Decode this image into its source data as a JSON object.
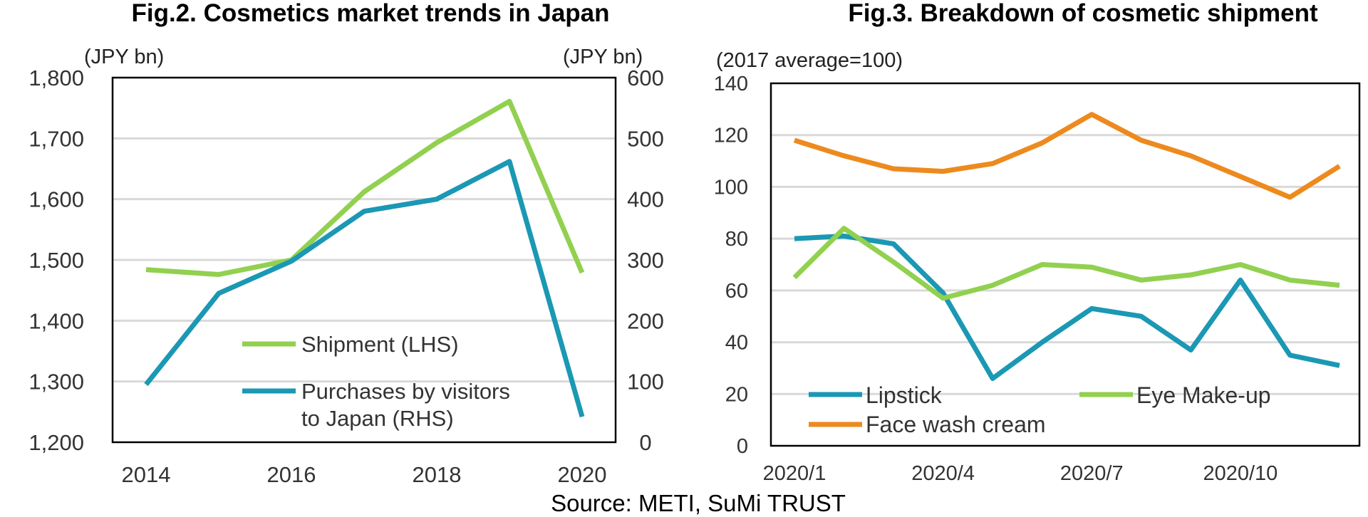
{
  "chart_data": [
    {
      "type": "line",
      "title": "Fig.2. Cosmetics market trends in Japan",
      "ylabel_left": "(JPY bn)",
      "ylabel_right": "(JPY bn)",
      "x": [
        2014,
        2015,
        2016,
        2017,
        2018,
        2019,
        2020
      ],
      "x_ticks": [
        "2014",
        "2016",
        "2018",
        "2020"
      ],
      "ylim_left": [
        1200,
        1800
      ],
      "ylim_right": [
        0,
        600
      ],
      "y_ticks_left": [
        "1,200",
        "1,300",
        "1,400",
        "1,500",
        "1,600",
        "1,700",
        "1,800"
      ],
      "y_ticks_right": [
        "0",
        "100",
        "200",
        "300",
        "400",
        "500",
        "600"
      ],
      "grid": true,
      "legend_position": "bottom-center",
      "series": [
        {
          "name": "Shipment (LHS)",
          "axis": "left",
          "color": "#92d050",
          "values": [
            1484,
            1476,
            1500,
            1612,
            1693,
            1761,
            1479
          ]
        },
        {
          "name": "Purchases by visitors to Japan (RHS)",
          "legend_lines": [
            "Purchases by visitors",
            "to Japan (RHS)"
          ],
          "axis": "right",
          "color": "#1a98b4",
          "values": [
            95,
            245,
            298,
            380,
            400,
            462,
            42
          ]
        }
      ]
    },
    {
      "type": "line",
      "title": "Fig.3. Breakdown of cosmetic shipment",
      "ylabel": "(2017 average=100)",
      "x": [
        "2020/1",
        "2020/2",
        "2020/3",
        "2020/4",
        "2020/5",
        "2020/6",
        "2020/7",
        "2020/8",
        "2020/9",
        "2020/10",
        "2020/11",
        "2020/12"
      ],
      "x_ticks": [
        "2020/1",
        "2020/4",
        "2020/7",
        "2020/10"
      ],
      "ylim": [
        0,
        140
      ],
      "y_ticks": [
        "0",
        "20",
        "40",
        "60",
        "80",
        "100",
        "120",
        "140"
      ],
      "grid": true,
      "legend_position": "bottom",
      "series": [
        {
          "name": "Lipstick",
          "color": "#1a98b4",
          "values": [
            80,
            81,
            78,
            59,
            26,
            40,
            53,
            50,
            37,
            64,
            35,
            31
          ]
        },
        {
          "name": "Eye Make-up",
          "color": "#92d050",
          "values": [
            65,
            84,
            71,
            57,
            62,
            70,
            69,
            64,
            66,
            70,
            64,
            62
          ]
        },
        {
          "name": "Face wash cream",
          "color": "#ed8a1e",
          "values": [
            118,
            112,
            107,
            106,
            109,
            117,
            128,
            118,
            112,
            104,
            96,
            108
          ]
        }
      ]
    }
  ],
  "footer": {
    "source": "Source: METI, SuMi TRUST"
  }
}
